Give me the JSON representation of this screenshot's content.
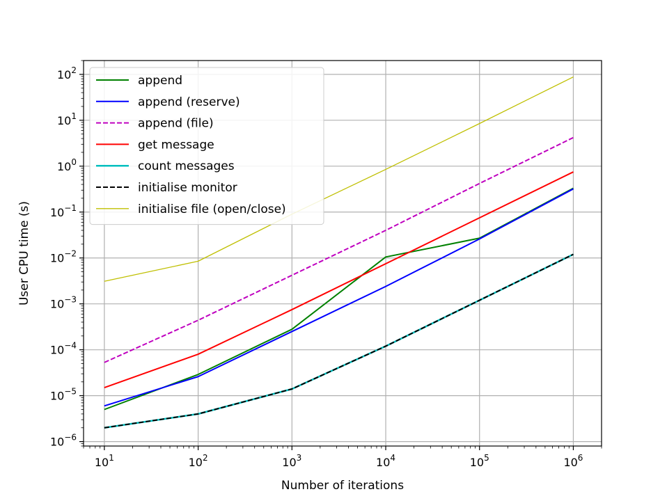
{
  "chart_data": {
    "type": "line",
    "x_scale": "log",
    "y_scale": "log",
    "x": [
      10,
      100,
      1000,
      10000,
      100000,
      1000000
    ],
    "xlim": [
      6,
      2000000
    ],
    "ylim": [
      8e-07,
      200
    ],
    "xlabel": "Number of iterations",
    "ylabel": "User CPU time (s)",
    "x_ticks": [
      {
        "value": 10,
        "base": "10",
        "exp": "1"
      },
      {
        "value": 100,
        "base": "10",
        "exp": "2"
      },
      {
        "value": 1000,
        "base": "10",
        "exp": "3"
      },
      {
        "value": 10000,
        "base": "10",
        "exp": "4"
      },
      {
        "value": 100000,
        "base": "10",
        "exp": "5"
      },
      {
        "value": 1000000,
        "base": "10",
        "exp": "6"
      }
    ],
    "y_ticks": [
      {
        "value": 1e-06,
        "base": "10",
        "exp": "−6"
      },
      {
        "value": 1e-05,
        "base": "10",
        "exp": "−5"
      },
      {
        "value": 0.0001,
        "base": "10",
        "exp": "−4"
      },
      {
        "value": 0.001,
        "base": "10",
        "exp": "−3"
      },
      {
        "value": 0.01,
        "base": "10",
        "exp": "−2"
      },
      {
        "value": 0.1,
        "base": "10",
        "exp": "−1"
      },
      {
        "value": 1,
        "base": "10",
        "exp": "0"
      },
      {
        "value": 10,
        "base": "10",
        "exp": "1"
      },
      {
        "value": 100,
        "base": "10",
        "exp": "2"
      }
    ],
    "grid": true,
    "legend_position": "top-left",
    "series": [
      {
        "name": "append",
        "color": "#008000",
        "dash": "solid",
        "width": 2,
        "values": [
          5e-06,
          2.9e-05,
          0.00028,
          0.0105,
          0.027,
          0.33
        ]
      },
      {
        "name": "append (reserve)",
        "color": "#0000ff",
        "dash": "solid",
        "width": 2,
        "values": [
          6e-06,
          2.6e-05,
          0.00025,
          0.0024,
          0.026,
          0.32
        ]
      },
      {
        "name": "append (file)",
        "color": "#bf00bf",
        "dash": "dashed",
        "width": 2,
        "values": [
          5.3e-05,
          0.00044,
          0.0042,
          0.04,
          0.42,
          4.2
        ]
      },
      {
        "name": "get message",
        "color": "#ff0000",
        "dash": "solid",
        "width": 2,
        "values": [
          1.5e-05,
          8e-05,
          0.00075,
          0.0075,
          0.075,
          0.75
        ]
      },
      {
        "name": "count messages",
        "color": "#00bfbf",
        "dash": "solid",
        "width": 2.5,
        "values": [
          2e-06,
          4e-06,
          1.4e-05,
          0.00012,
          0.0012,
          0.012
        ]
      },
      {
        "name": "initialise monitor",
        "color": "#000000",
        "dash": "dashed",
        "width": 2,
        "values": [
          2e-06,
          4e-06,
          1.4e-05,
          0.00012,
          0.0012,
          0.012
        ]
      },
      {
        "name": "initialise file (open/close)",
        "color": "#bfbf00",
        "dash": "solid",
        "width": 1.3,
        "values": [
          0.0031,
          0.0085,
          0.09,
          0.85,
          8.5,
          88
        ]
      }
    ]
  }
}
